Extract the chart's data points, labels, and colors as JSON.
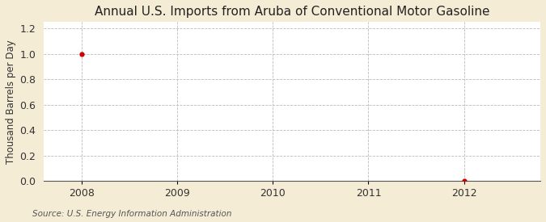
{
  "title": "Annual U.S. Imports from Aruba of Conventional Motor Gasoline",
  "ylabel": "Thousand Barrels per Day",
  "source": "Source: U.S. Energy Information Administration",
  "x_data": [
    2008,
    2012
  ],
  "y_data": [
    1.0,
    0.0
  ],
  "point_color": "#cc0000",
  "xlim": [
    2007.6,
    2012.8
  ],
  "ylim": [
    0.0,
    1.25
  ],
  "yticks": [
    0.0,
    0.2,
    0.4,
    0.6,
    0.8,
    1.0,
    1.2
  ],
  "xticks": [
    2008,
    2009,
    2010,
    2011,
    2012
  ],
  "figure_bg_color": "#f5ecd5",
  "plot_bg_color": "#ffffff",
  "grid_color": "#bbbbbb",
  "title_fontsize": 11,
  "label_fontsize": 8.5,
  "tick_fontsize": 9,
  "source_fontsize": 7.5
}
